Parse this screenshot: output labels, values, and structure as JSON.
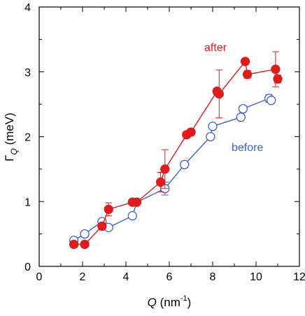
{
  "chart_data": {
    "type": "scatter",
    "xlabel": {
      "symbol": "Q",
      "text": " (nm",
      "exp": "-1",
      "close": ")"
    },
    "ylabel": {
      "symbol": "Γ",
      "sub": "Q",
      "text": " (meV)"
    },
    "xlim": [
      0,
      12
    ],
    "ylim": [
      0,
      4
    ],
    "xticks": [
      "0",
      "2",
      "4",
      "6",
      "8",
      "10",
      "12"
    ],
    "yticks": [
      "0",
      "1",
      "2",
      "3",
      "4"
    ],
    "grid": false,
    "series": [
      {
        "name": "before",
        "color": "#3a5fd9",
        "marker": "open-circle",
        "points": [
          {
            "x": 1.6,
            "y": 0.4,
            "err": 0.04
          },
          {
            "x": 2.1,
            "y": 0.5,
            "err": 0.03
          },
          {
            "x": 2.9,
            "y": 0.69,
            "err": 0.03
          },
          {
            "x": 3.2,
            "y": 0.6,
            "err": 0.03
          },
          {
            "x": 4.3,
            "y": 0.78,
            "err": 0.04
          },
          {
            "x": 4.5,
            "y": 0.99,
            "err": 0.03
          },
          {
            "x": 5.8,
            "y": 1.2,
            "err": 0.1
          },
          {
            "x": 6.7,
            "y": 1.57,
            "err": 0.05
          },
          {
            "x": 7.9,
            "y": 2.0,
            "err": 0.04
          },
          {
            "x": 8.0,
            "y": 2.16,
            "err": 0.04
          },
          {
            "x": 9.3,
            "y": 2.3,
            "err": 0.04
          },
          {
            "x": 9.4,
            "y": 2.43,
            "err": 0.05
          },
          {
            "x": 10.6,
            "y": 2.59,
            "err": 0.06
          },
          {
            "x": 10.7,
            "y": 2.56,
            "err": 0.04
          }
        ]
      },
      {
        "name": "after",
        "color": "#e01b1b",
        "marker": "filled-circle",
        "points": [
          {
            "x": 1.6,
            "y": 0.34,
            "err": 0.05
          },
          {
            "x": 2.1,
            "y": 0.34,
            "err": 0.03
          },
          {
            "x": 2.9,
            "y": 0.62,
            "err": 0.05
          },
          {
            "x": 3.2,
            "y": 0.88,
            "err": 0.1
          },
          {
            "x": 4.3,
            "y": 0.99,
            "err": 0.03
          },
          {
            "x": 4.5,
            "y": 0.99,
            "err": 0.03
          },
          {
            "x": 5.6,
            "y": 1.3,
            "err": 0.15
          },
          {
            "x": 5.8,
            "y": 1.5,
            "err": 0.3
          },
          {
            "x": 6.8,
            "y": 2.03,
            "err": 0.05
          },
          {
            "x": 7.0,
            "y": 2.07,
            "err": 0.05
          },
          {
            "x": 8.2,
            "y": 2.7,
            "err": 0.05
          },
          {
            "x": 8.3,
            "y": 2.66,
            "err": 0.37
          },
          {
            "x": 9.5,
            "y": 3.16,
            "err": 0.05
          },
          {
            "x": 9.6,
            "y": 2.96,
            "err": 0.06
          },
          {
            "x": 10.9,
            "y": 3.04,
            "err": 0.27
          },
          {
            "x": 11.0,
            "y": 2.89,
            "err": 0.06
          }
        ]
      }
    ]
  }
}
